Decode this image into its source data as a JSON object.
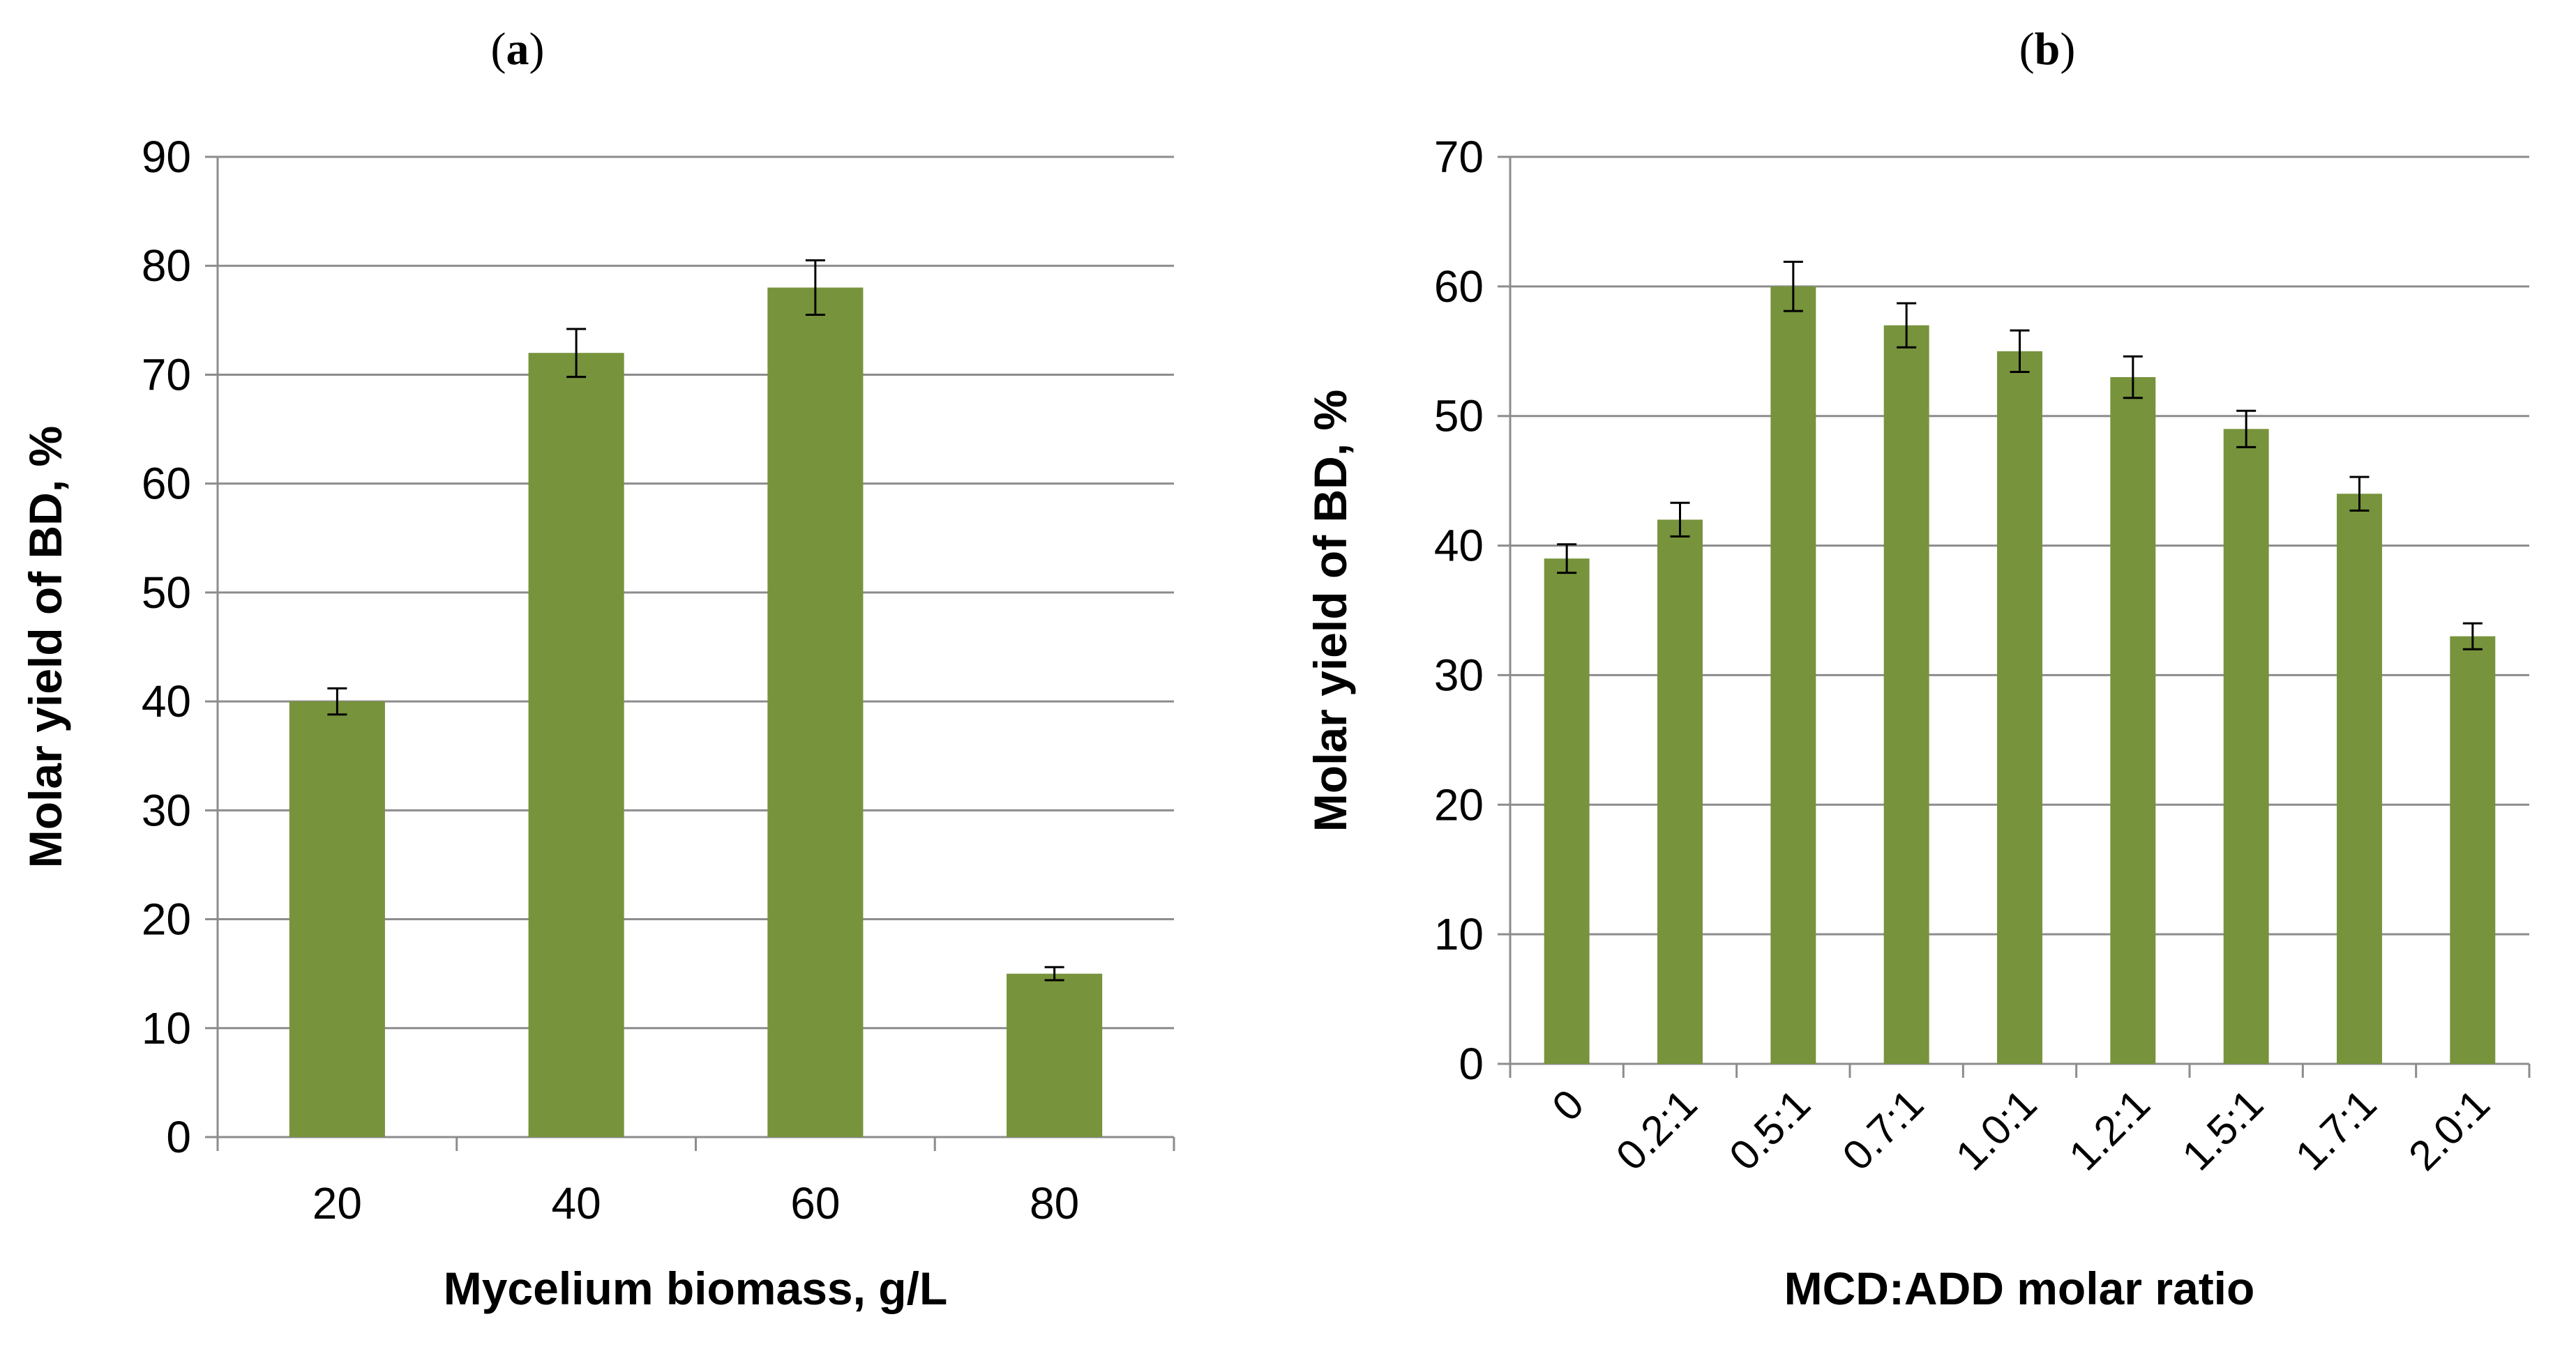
{
  "chart_data": [
    {
      "type": "bar",
      "panel_label": "a",
      "panel_label_open": "(",
      "panel_label_close": ")",
      "categories": [
        "20",
        "40",
        "60",
        "80"
      ],
      "values": [
        40,
        72,
        78,
        15
      ],
      "errors": [
        1.2,
        2.2,
        2.5,
        0.6
      ],
      "xlabel": "Mycelium biomass, g/L",
      "ylabel": "Molar yield of BD, %",
      "ylim": [
        0,
        90
      ],
      "yticks": [
        0,
        10,
        20,
        30,
        40,
        50,
        60,
        70,
        80,
        90
      ],
      "grid": true,
      "bar_color": "#77933c"
    },
    {
      "type": "bar",
      "panel_label": "b",
      "panel_label_open": "(",
      "panel_label_close": ")",
      "categories": [
        "0",
        "0.2:1",
        "0.5:1",
        "0.7:1",
        "1.0:1",
        "1.2:1",
        "1.5:1",
        "1.7:1",
        "2.0:1"
      ],
      "values": [
        39,
        42,
        60,
        57,
        55,
        53,
        49,
        44,
        33
      ],
      "errors": [
        1.1,
        1.3,
        1.9,
        1.7,
        1.6,
        1.6,
        1.4,
        1.3,
        1.0
      ],
      "xlabel": "MCD:ADD molar ratio",
      "ylabel": "Molar yield of BD, %",
      "ylim": [
        0,
        70
      ],
      "yticks": [
        0,
        10,
        20,
        30,
        40,
        50,
        60,
        70
      ],
      "grid": true,
      "bar_color": "#77933c"
    }
  ]
}
